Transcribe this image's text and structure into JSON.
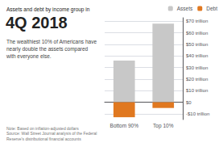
{
  "chart_data": {
    "type": "bar",
    "title": "Assets and debt by income group in\n4Q 2018",
    "subtitle": "The wealthiest 10% of Americans have\nnearly double the assets compared\nwith everyone else.",
    "annotations": [
      "Note: Based on inflation-adjusted dollars\nSource: Wall Street Journal analysis of the Federal\nReserve's distributional financial accounts"
    ],
    "categories": [
      "Bottom 90%",
      "Top 10%"
    ],
    "series": [
      {
        "name": "Assets",
        "color": "#c8c8c8",
        "values": [
          36,
          68
        ]
      },
      {
        "name": "Debt",
        "color": "#e07820",
        "values": [
          -13,
          -5
        ]
      }
    ],
    "ylim": [
      -15,
      73
    ],
    "yticks": [
      {
        "value": -10,
        "label": "-$10 trillion"
      },
      {
        "value": 0,
        "label": "$0"
      },
      {
        "value": 10,
        "label": "$10 trillion"
      },
      {
        "value": 20,
        "label": "$20 trillion"
      },
      {
        "value": 30,
        "label": "$30 trillion"
      },
      {
        "value": 40,
        "label": "$40 trillion"
      },
      {
        "value": 50,
        "label": "$50 trillion"
      },
      {
        "value": 60,
        "label": "$60 trillion"
      },
      {
        "value": 70,
        "label": "$70 trillion"
      }
    ],
    "grid": true,
    "legend": "upper right"
  }
}
